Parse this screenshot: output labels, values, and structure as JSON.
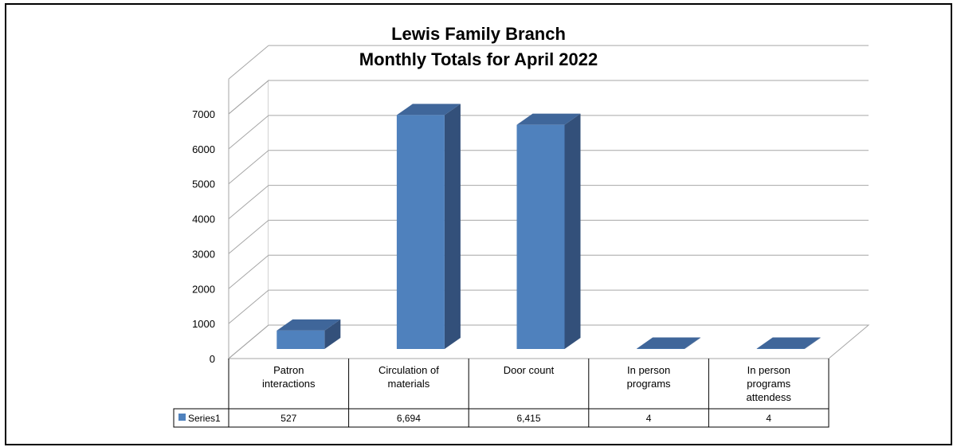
{
  "chart_data": {
    "type": "bar",
    "title": [
      "Lewis Family Branch",
      "Monthly Totals for April 2022"
    ],
    "categories": [
      [
        "Patron",
        "interactions"
      ],
      [
        "Circulation of",
        "materials"
      ],
      [
        "Door count"
      ],
      [
        "In person",
        "programs"
      ],
      [
        "In person",
        "programs",
        "attendess"
      ]
    ],
    "series": [
      {
        "name": "Series1",
        "values": [
          527,
          6694,
          6415,
          4,
          4
        ],
        "value_labels": [
          "527",
          "6,694",
          "6,415",
          "4",
          "4"
        ]
      }
    ],
    "ylim": [
      0,
      7000
    ],
    "yticks": [
      0,
      1000,
      2000,
      3000,
      4000,
      5000,
      6000,
      7000
    ],
    "grid": true,
    "data_table": true,
    "style": "3d-column",
    "colors": {
      "bar_front": "#4F81BD",
      "bar_side": "#33507A",
      "bar_top": "#3F669A",
      "grid": "#A6A6A6"
    }
  }
}
